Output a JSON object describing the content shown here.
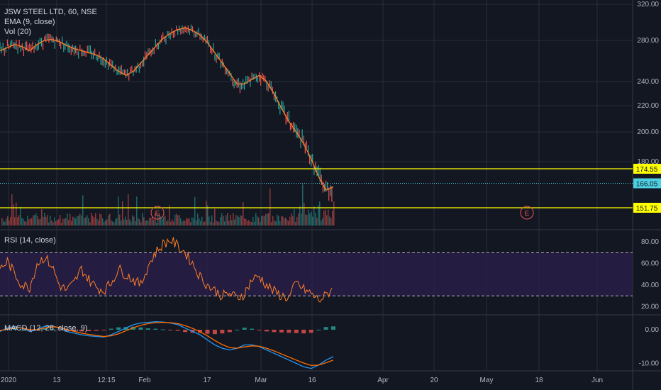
{
  "main_legend": {
    "symbol": "JSW STEEL LTD, 60, NSE",
    "ema": "EMA (9, close)",
    "vol": "Vol (20)"
  },
  "rsi_legend": "RSI (14, close)",
  "macd_legend": "MACD (12, 26, close, 9)",
  "colors": {
    "background": "#131722",
    "grid": "#2a2e39",
    "price": "#26a69a",
    "ema": "#ff7f27",
    "rsi": "#ff7f27",
    "rsi_band": "#2c1f4e",
    "macd": "#2196f3",
    "signal": "#ff6d00",
    "hline": "#ffff00",
    "last_price": "#4dd0e1"
  },
  "chart_data": [
    {
      "type": "line",
      "panel": "price",
      "title": "JSW STEEL LTD, 60, NSE",
      "y_ticks": [
        320,
        280,
        240,
        220,
        200,
        180
      ],
      "y_tick_labels": [
        "320.00",
        "280.00",
        "240.00",
        "220.00",
        "200.00",
        "180.00"
      ],
      "x_tick_labels": [
        "2020",
        "13",
        "12:15",
        "Feb",
        "17",
        "Mar",
        "16",
        "Apr",
        "20",
        "May",
        "18",
        "Jun"
      ],
      "ylim": [
        145,
        325
      ],
      "series": [
        {
          "name": "EMA (9, close)",
          "values": [
            270,
            273,
            276,
            274,
            270,
            276,
            280,
            281,
            279,
            275,
            272,
            270,
            268,
            266,
            262,
            256,
            250,
            246,
            250,
            258,
            266,
            274,
            282,
            288,
            292,
            294,
            291,
            286,
            278,
            268,
            258,
            248,
            238,
            238,
            242,
            246,
            240,
            230,
            218,
            208,
            200,
            192,
            182,
            170,
            162,
            164
          ]
        }
      ],
      "horizontal_lines": [
        {
          "value": 174.55,
          "label": "174.55"
        },
        {
          "value": 151.75,
          "label": "151.75"
        }
      ],
      "last_price": {
        "value": 166.05,
        "label": "166.05"
      },
      "events": [
        "E",
        "E"
      ]
    },
    {
      "type": "line",
      "panel": "rsi",
      "title": "RSI (14, close)",
      "y_ticks": [
        80,
        60,
        40,
        20
      ],
      "y_tick_labels": [
        "80.00",
        "60.00",
        "40.00",
        "20.00"
      ],
      "ylim": [
        15,
        90
      ],
      "bands": [
        30,
        70
      ],
      "series": [
        {
          "name": "RSI (14, close)",
          "values": [
            55,
            62,
            50,
            40,
            38,
            60,
            66,
            58,
            40,
            35,
            42,
            55,
            45,
            38,
            35,
            42,
            55,
            50,
            45,
            40,
            58,
            70,
            78,
            82,
            76,
            70,
            60,
            48,
            40,
            35,
            30,
            32,
            28,
            32,
            45,
            48,
            40,
            34,
            30,
            28,
            42,
            36,
            32,
            26,
            30,
            38
          ]
        }
      ]
    },
    {
      "type": "line",
      "panel": "macd",
      "title": "MACD (12, 26, close, 9)",
      "y_ticks": [
        0,
        -10
      ],
      "y_tick_labels": [
        "0.00",
        "-10.00"
      ],
      "ylim": [
        -12,
        4
      ],
      "series": [
        {
          "name": "MACD",
          "values": [
            -0.5,
            0.5,
            1,
            0.5,
            -0.5,
            0,
            1,
            1.2,
            0.5,
            -0.5,
            -1,
            -1.5,
            -1.8,
            -2,
            -2.2,
            -1.5,
            -0.5,
            0.5,
            1.5,
            2,
            2.2,
            2.4,
            2.3,
            2,
            1.5,
            0.5,
            -0.5,
            -1.5,
            -3,
            -4.5,
            -5.5,
            -6,
            -5.5,
            -4.5,
            -4.5,
            -5,
            -6,
            -7,
            -8,
            -9,
            -10,
            -11,
            -11.5,
            -10.5,
            -9,
            -8
          ]
        },
        {
          "name": "Signal",
          "values": [
            -0.3,
            0.2,
            0.6,
            0.5,
            0,
            0,
            0.5,
            0.9,
            0.7,
            0.1,
            -0.5,
            -1,
            -1.4,
            -1.7,
            -2,
            -1.8,
            -1.2,
            -0.3,
            0.6,
            1.3,
            1.8,
            2.1,
            2.2,
            2.1,
            1.8,
            1.2,
            0.4,
            -0.6,
            -1.8,
            -3.2,
            -4.4,
            -5.3,
            -5.5,
            -5.1,
            -4.8,
            -4.9,
            -5.5,
            -6.3,
            -7.2,
            -8.1,
            -9,
            -9.9,
            -10.6,
            -10.5,
            -9.8,
            -9
          ]
        }
      ]
    }
  ]
}
